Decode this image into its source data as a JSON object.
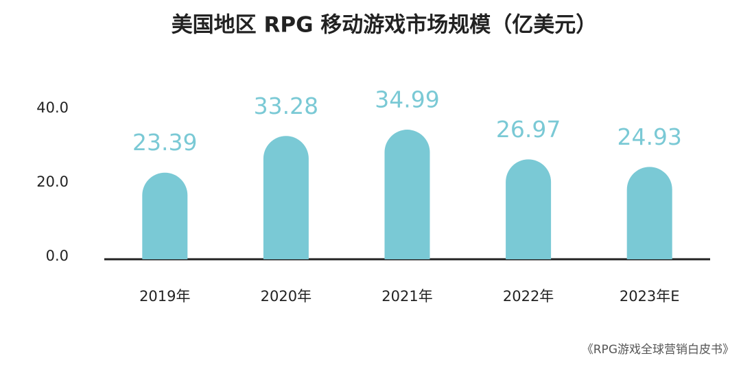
{
  "chart_data": {
    "type": "bar",
    "title": "美国地区 RPG 移动游戏市场规模（亿美元）",
    "categories": [
      "2019年",
      "2020年",
      "2021年",
      "2022年",
      "2023年E"
    ],
    "values": [
      23.39,
      33.28,
      34.99,
      26.97,
      24.93
    ],
    "color": "#7ac9d5",
    "ylim": [
      0,
      40
    ],
    "yticks": [
      {
        "value": 0,
        "label": "0.0"
      },
      {
        "value": 20,
        "label": "20.0"
      },
      {
        "value": 40,
        "label": "40.0"
      }
    ],
    "grid": false,
    "source": "《RPG游戏全球营销白皮书》"
  }
}
